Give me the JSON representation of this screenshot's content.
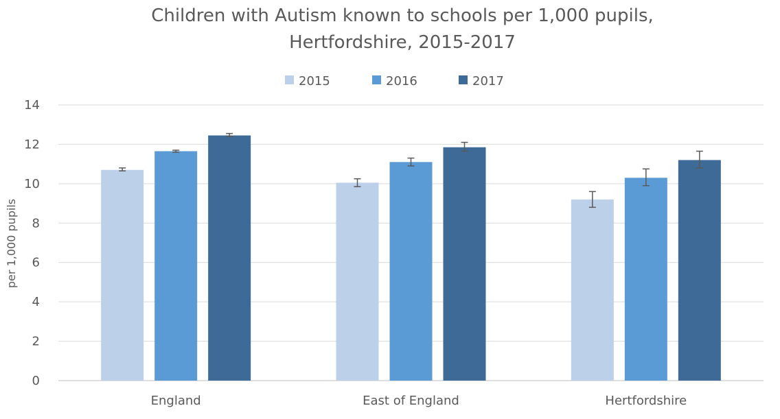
{
  "chart_data": {
    "type": "bar",
    "title_line1": "Children with Autism known to schools per 1,000 pupils,",
    "title_line2": "Hertfordshire, 2015-2017",
    "xlabel": "",
    "ylabel": "per 1,000 pupils",
    "ylim": [
      0,
      14
    ],
    "yticks": [
      0,
      2,
      4,
      6,
      8,
      10,
      12,
      14
    ],
    "grid": true,
    "legend_position": "top",
    "categories": [
      "England",
      "East of England",
      "Hertfordshire"
    ],
    "series": [
      {
        "name": "2015",
        "color": "#bdd0e9",
        "values": [
          10.7,
          10.05,
          9.2
        ],
        "error_low": [
          10.65,
          9.85,
          8.8
        ],
        "error_high": [
          10.8,
          10.25,
          9.6
        ]
      },
      {
        "name": "2016",
        "color": "#5b9bd5",
        "values": [
          11.65,
          11.1,
          10.3
        ],
        "error_low": [
          11.6,
          10.9,
          9.9
        ],
        "error_high": [
          11.7,
          11.3,
          10.75
        ]
      },
      {
        "name": "2017",
        "color": "#3d6a96",
        "values": [
          12.45,
          11.85,
          11.2
        ],
        "error_low": [
          12.4,
          11.65,
          10.8
        ],
        "error_high": [
          12.55,
          12.1,
          11.65
        ]
      }
    ]
  }
}
